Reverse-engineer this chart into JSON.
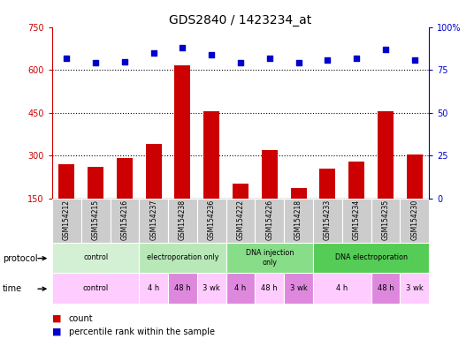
{
  "title": "GDS2840 / 1423234_at",
  "samples": [
    "GSM154212",
    "GSM154215",
    "GSM154216",
    "GSM154237",
    "GSM154238",
    "GSM154236",
    "GSM154222",
    "GSM154226",
    "GSM154218",
    "GSM154233",
    "GSM154234",
    "GSM154235",
    "GSM154230"
  ],
  "counts": [
    270,
    260,
    290,
    340,
    615,
    455,
    200,
    320,
    185,
    255,
    280,
    455,
    305
  ],
  "percentiles": [
    82,
    79,
    80,
    85,
    88,
    84,
    79,
    82,
    79,
    81,
    82,
    87,
    81
  ],
  "bar_color": "#cc0000",
  "dot_color": "#0000cc",
  "left_ylim": [
    150,
    750
  ],
  "left_yticks": [
    150,
    300,
    450,
    600,
    750
  ],
  "right_ylim": [
    0,
    100
  ],
  "right_yticks": [
    0,
    25,
    50,
    75,
    100
  ],
  "right_yticklabels": [
    "0",
    "25",
    "50",
    "75",
    "100%"
  ],
  "grid_values": [
    300,
    450,
    600
  ],
  "protocols": [
    {
      "label": "control",
      "start": 0,
      "end": 3,
      "color": "#d4f0d4"
    },
    {
      "label": "electroporation only",
      "start": 3,
      "end": 6,
      "color": "#b8e8b8"
    },
    {
      "label": "DNA injection only\nonly",
      "start": 6,
      "end": 9,
      "color": "#88dd88"
    },
    {
      "label": "DNA electroporation",
      "start": 9,
      "end": 13,
      "color": "#55cc55"
    }
  ],
  "protocol_labels": [
    "control",
    "electroporation only",
    "DNA injection only",
    "DNA electroporation"
  ],
  "times": [
    {
      "label": "control",
      "start": 0,
      "end": 3,
      "color": "#ffccff"
    },
    {
      "label": "4 h",
      "start": 3,
      "end": 4,
      "color": "#ffccff"
    },
    {
      "label": "48 h",
      "start": 4,
      "end": 5,
      "color": "#dd88dd"
    },
    {
      "label": "3 wk",
      "start": 5,
      "end": 6,
      "color": "#ffccff"
    },
    {
      "label": "4 h",
      "start": 6,
      "end": 7,
      "color": "#dd88dd"
    },
    {
      "label": "48 h",
      "start": 7,
      "end": 8,
      "color": "#ffccff"
    },
    {
      "label": "3 wk",
      "start": 8,
      "end": 9,
      "color": "#dd88dd"
    },
    {
      "label": "4 h",
      "start": 9,
      "end": 11,
      "color": "#ffccff"
    },
    {
      "label": "48 h",
      "start": 11,
      "end": 12,
      "color": "#dd88dd"
    },
    {
      "label": "3 wk",
      "start": 12,
      "end": 13,
      "color": "#ffccff"
    }
  ],
  "sample_box_color": "#cccccc",
  "legend_count_color": "#cc0000",
  "legend_pct_color": "#0000cc",
  "bg_color": "white",
  "left_axis_color": "#cc0000",
  "right_axis_color": "#0000cc"
}
